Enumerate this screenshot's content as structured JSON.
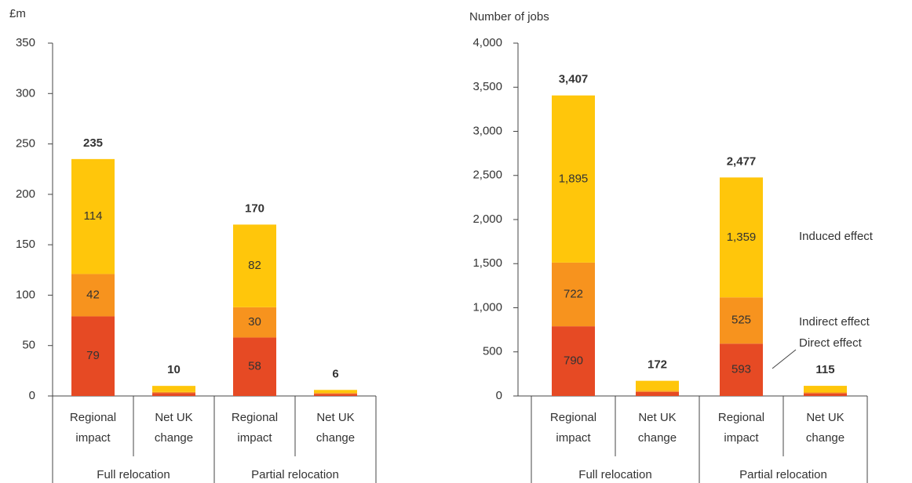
{
  "chart_data": [
    {
      "type": "bar",
      "stacked": true,
      "y_label": "£m",
      "categories": [
        "Regional impact",
        "Net UK change",
        "Regional impact",
        "Net UK change"
      ],
      "groups": [
        "Full relocation",
        "Partial relocation"
      ],
      "series": [
        {
          "color": "#e64a24",
          "values": [
            79,
            3,
            58,
            2
          ],
          "value_labels": [
            "79",
            null,
            "58",
            null
          ]
        },
        {
          "color": "#f7931e",
          "values": [
            42,
            1,
            30,
            1
          ],
          "value_labels": [
            "42",
            null,
            "30",
            null
          ]
        },
        {
          "color": "#ffc60b",
          "values": [
            114,
            6,
            82,
            3
          ],
          "value_labels": [
            "114",
            null,
            "82",
            null
          ]
        }
      ],
      "totals": [
        235,
        10,
        170,
        6
      ],
      "ylim": [
        0,
        350
      ],
      "yticks": [
        0,
        50,
        100,
        150,
        200,
        250,
        300,
        350
      ]
    },
    {
      "type": "bar",
      "stacked": true,
      "y_label": "Number of jobs",
      "categories": [
        "Regional impact",
        "Net UK change",
        "Regional impact",
        "Net UK change"
      ],
      "groups": [
        "Full relocation",
        "Partial relocation"
      ],
      "series": [
        {
          "name": "Direct effect",
          "color": "#e64a24",
          "values": [
            790,
            45,
            593,
            30
          ],
          "value_labels": [
            "790",
            null,
            "593",
            null
          ]
        },
        {
          "name": "Indirect effect",
          "color": "#f7931e",
          "values": [
            722,
            15,
            525,
            10
          ],
          "value_labels": [
            "722",
            null,
            "525",
            null
          ]
        },
        {
          "name": "Induced effect",
          "color": "#ffc60b",
          "values": [
            1895,
            112,
            1359,
            75
          ],
          "value_labels": [
            "1,895",
            null,
            "1,359",
            null
          ]
        }
      ],
      "totals": [
        3407,
        172,
        2477,
        115
      ],
      "total_labels": [
        "3,407",
        "172",
        "2,477",
        "115"
      ],
      "legend": "right",
      "ylim": [
        0,
        4000
      ],
      "yticks": [
        0,
        500,
        {
          "value": 1000,
          "label": "1,000"
        },
        {
          "value": 1500,
          "label": "1,500"
        },
        {
          "value": 2000,
          "label": "2,000"
        },
        {
          "value": 2500,
          "label": "2,500"
        },
        {
          "value": 3000,
          "label": "3,000"
        },
        {
          "value": 3500,
          "label": "3,500"
        },
        {
          "value": 4000,
          "label": "4,000"
        }
      ]
    }
  ]
}
